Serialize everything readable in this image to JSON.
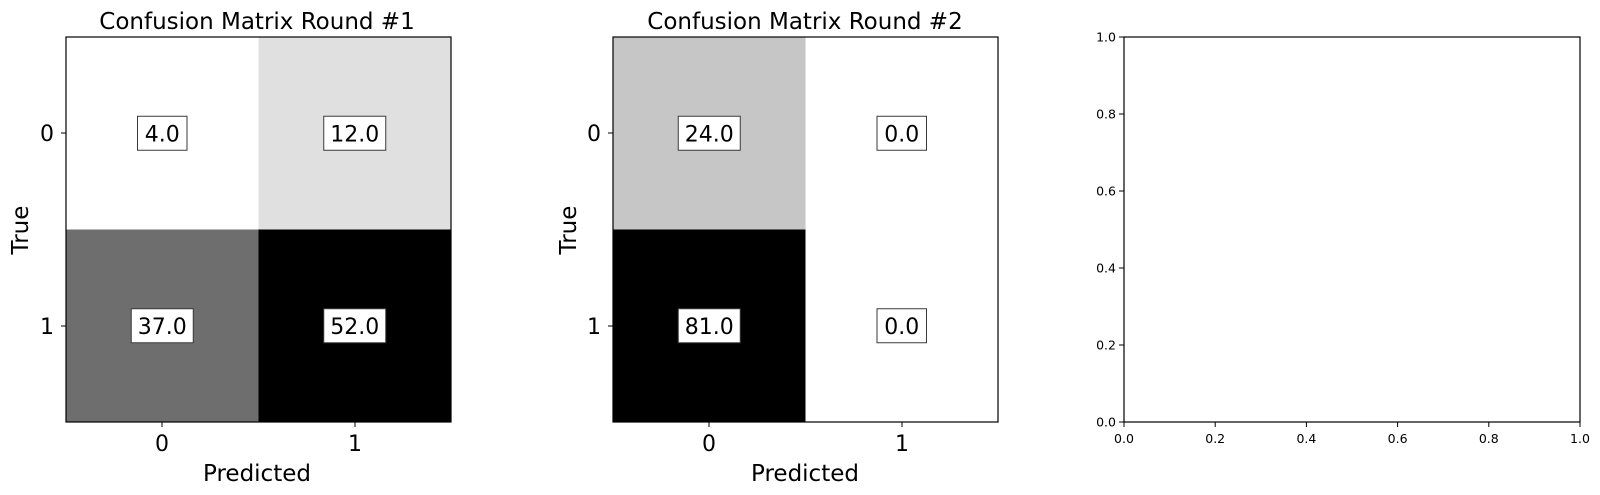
{
  "chart_data": [
    {
      "type": "heatmap",
      "title": "Confusion Matrix Round #1",
      "xlabel": "Predicted",
      "ylabel": "True",
      "x_ticks": [
        "0",
        "1"
      ],
      "y_ticks": [
        "0",
        "1"
      ],
      "cell_labels": [
        [
          "4.0",
          "12.0"
        ],
        [
          "37.0",
          "52.0"
        ]
      ],
      "values": [
        [
          4,
          12
        ],
        [
          37,
          52
        ]
      ],
      "colormap": "Greys"
    },
    {
      "type": "heatmap",
      "title": "Confusion Matrix Round #2",
      "xlabel": "Predicted",
      "ylabel": "True",
      "x_ticks": [
        "0",
        "1"
      ],
      "y_ticks": [
        "0",
        "1"
      ],
      "cell_labels": [
        [
          "24.0",
          "0.0"
        ],
        [
          "81.0",
          "0.0"
        ]
      ],
      "values": [
        [
          24,
          0
        ],
        [
          81,
          0
        ]
      ],
      "colormap": "Greys"
    },
    {
      "type": "scatter",
      "xlim": [
        0,
        1
      ],
      "ylim": [
        0,
        1
      ],
      "x_ticks": [
        "0.0",
        "0.2",
        "0.4",
        "0.6",
        "0.8",
        "1.0"
      ],
      "y_ticks": [
        "0.0",
        "0.2",
        "0.4",
        "0.6",
        "0.8",
        "1.0"
      ],
      "series": []
    }
  ]
}
